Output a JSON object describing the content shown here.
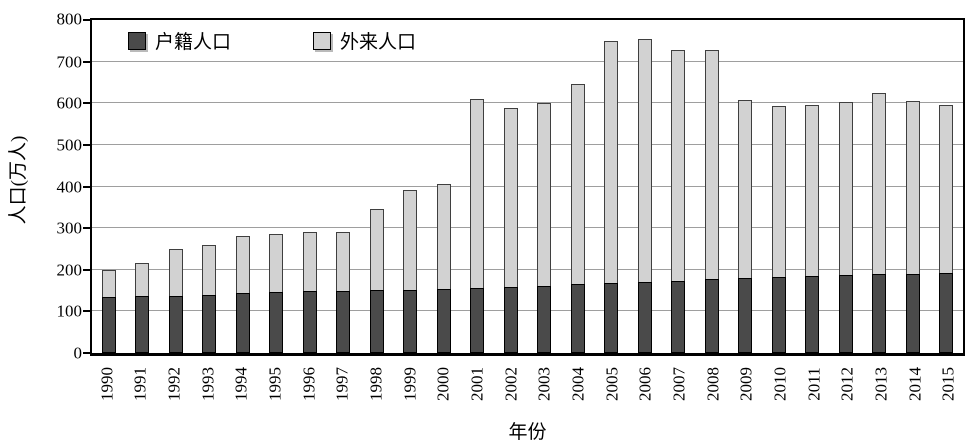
{
  "chart_data": {
    "type": "bar",
    "stacked": true,
    "title": "",
    "xlabel": "年份",
    "ylabel": "人口(万人)",
    "ylim": [
      0,
      800
    ],
    "ytick_step": 100,
    "yticks": [
      0,
      100,
      200,
      300,
      400,
      500,
      600,
      700,
      800
    ],
    "grid": true,
    "legend_position": "top-inside",
    "categories": [
      "1990",
      "1991",
      "1992",
      "1993",
      "1994",
      "1995",
      "1996",
      "1997",
      "1998",
      "1999",
      "2000",
      "2001",
      "2002",
      "2003",
      "2004",
      "2005",
      "2006",
      "2007",
      "2008",
      "2009",
      "2010",
      "2011",
      "2012",
      "2013",
      "2014",
      "2015"
    ],
    "series": [
      {
        "name": "户籍人口",
        "color": "#4a4a4a",
        "values": [
          135,
          136,
          138,
          140,
          144,
          146,
          148,
          150,
          151,
          152,
          154,
          155,
          158,
          161,
          165,
          168,
          171,
          173,
          177,
          180,
          183,
          185,
          187,
          189,
          190,
          192
        ]
      },
      {
        "name": "外来人口",
        "color": "#d2d2d2",
        "values": [
          65,
          79,
          112,
          120,
          136,
          139,
          142,
          141,
          195,
          241,
          253,
          455,
          431,
          439,
          481,
          582,
          583,
          554,
          550,
          427,
          410,
          412,
          416,
          434,
          416,
          404
        ]
      }
    ],
    "stack_totals": [
      200,
      215,
      250,
      260,
      280,
      285,
      290,
      291,
      346,
      393,
      407,
      610,
      589,
      600,
      646,
      750,
      754,
      727,
      727,
      607,
      593,
      597,
      603,
      623,
      606,
      596
    ],
    "colors": {
      "axis": "#000000",
      "gridline": "#9e9e9e",
      "registered_fill": "#4a4a4a",
      "migrant_fill": "#d2d2d2"
    }
  }
}
